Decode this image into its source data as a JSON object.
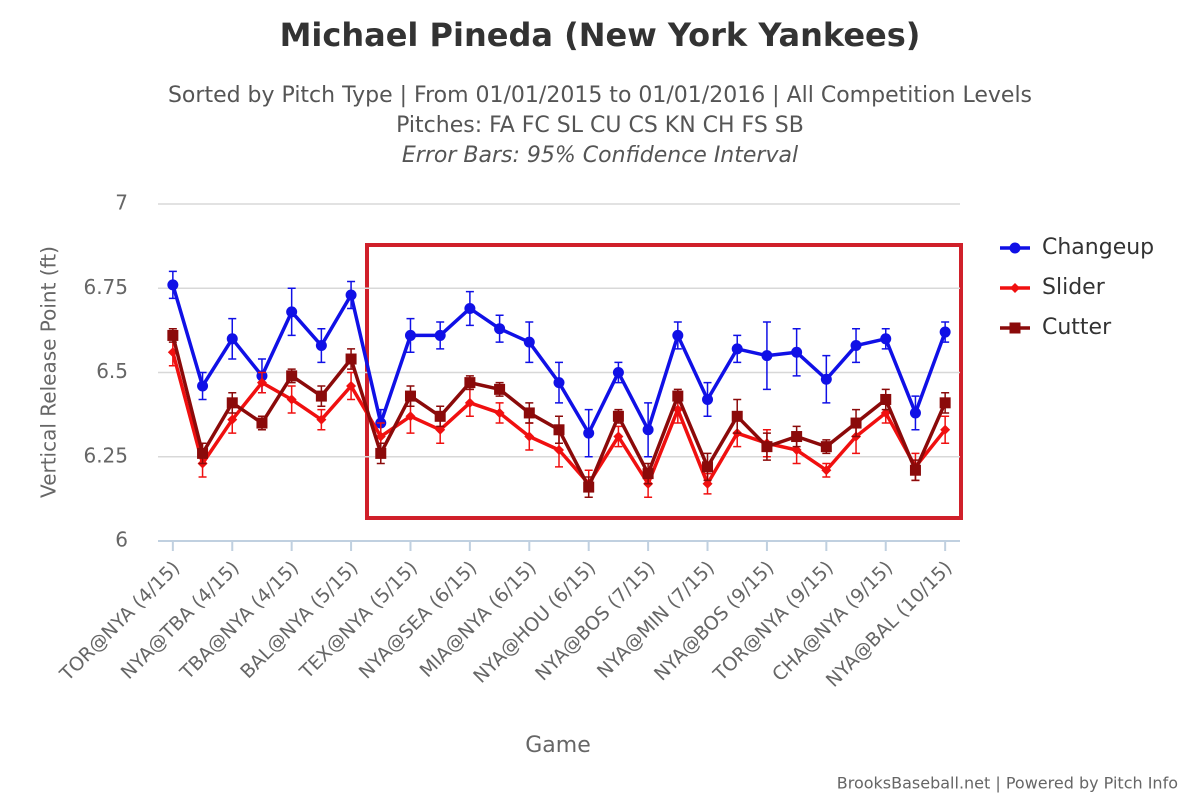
{
  "chart_data": {
    "type": "line",
    "title": "Michael Pineda (New York Yankees)",
    "subtitle": [
      "Sorted by Pitch Type | From 01/01/2015 to 01/01/2016 | All Competition Levels",
      "Pitches: FA FC SL CU CS KN CH FS SB",
      "Error Bars: 95% Confidence Interval"
    ],
    "x_label": "Game",
    "y_label": "Vertical Release Point (ft)",
    "credit": "BrooksBaseball.net | Powered by Pitch Info",
    "categories": [
      "TOR@NYA (4/15)",
      null,
      "NYA@TBA (4/15)",
      null,
      "TBA@NYA (4/15)",
      null,
      "BAL@NYA (5/15)",
      null,
      "TEX@NYA (5/15)",
      null,
      "NYA@SEA (6/15)",
      null,
      "MIA@NYA (6/15)",
      null,
      "NYA@HOU (6/15)",
      null,
      "NYA@BOS (7/15)",
      null,
      "NYA@MIN (7/15)",
      null,
      "NYA@BOS (9/15)",
      null,
      "TOR@NYA (9/15)",
      null,
      "CHA@NYA (9/15)",
      null,
      "NYA@BAL (10/15)"
    ],
    "ylim": [
      6,
      7
    ],
    "yticks": [
      6,
      6.25,
      6.5,
      6.75,
      7
    ],
    "grid": true,
    "legend": "right",
    "series": [
      {
        "name": "Changeup",
        "color": "#1010e6",
        "marker": "circle",
        "values": [
          6.76,
          6.46,
          6.6,
          6.49,
          6.68,
          6.58,
          6.73,
          6.35,
          6.61,
          6.61,
          6.69,
          6.63,
          6.59,
          6.47,
          6.32,
          6.5,
          6.33,
          6.61,
          6.42,
          6.57,
          6.55,
          6.56,
          6.48,
          6.58,
          6.6,
          6.38,
          6.62
        ],
        "errors": [
          0.04,
          0.04,
          0.06,
          0.05,
          0.07,
          0.05,
          0.04,
          0.04,
          0.05,
          0.04,
          0.05,
          0.04,
          0.06,
          0.06,
          0.07,
          0.03,
          0.08,
          0.04,
          0.05,
          0.04,
          0.1,
          0.07,
          0.07,
          0.05,
          0.03,
          0.05,
          0.03
        ]
      },
      {
        "name": "Slider",
        "color": "#f01010",
        "marker": "diamond",
        "values": [
          6.56,
          6.23,
          6.36,
          6.47,
          6.42,
          6.36,
          6.46,
          6.31,
          6.37,
          6.33,
          6.41,
          6.38,
          6.31,
          6.27,
          6.17,
          6.31,
          6.17,
          6.39,
          6.17,
          6.32,
          6.29,
          6.27,
          6.21,
          6.31,
          6.38,
          6.22,
          6.33
        ],
        "errors": [
          0.04,
          0.04,
          0.04,
          0.03,
          0.04,
          0.03,
          0.04,
          0.04,
          0.05,
          0.04,
          0.04,
          0.03,
          0.04,
          0.05,
          0.04,
          0.03,
          0.04,
          0.04,
          0.03,
          0.04,
          0.04,
          0.04,
          0.02,
          0.05,
          0.03,
          0.04,
          0.04
        ]
      },
      {
        "name": "Cutter",
        "color": "#8b0a0a",
        "marker": "square",
        "values": [
          6.61,
          6.26,
          6.41,
          6.35,
          6.49,
          6.43,
          6.54,
          6.26,
          6.43,
          6.37,
          6.47,
          6.45,
          6.38,
          6.33,
          6.16,
          6.37,
          6.2,
          6.43,
          6.22,
          6.37,
          6.28,
          6.31,
          6.28,
          6.35,
          6.42,
          6.21,
          6.41
        ],
        "errors": [
          0.02,
          0.03,
          0.03,
          0.02,
          0.02,
          0.03,
          0.03,
          0.03,
          0.03,
          0.03,
          0.02,
          0.02,
          0.03,
          0.04,
          0.03,
          0.02,
          0.03,
          0.02,
          0.04,
          0.05,
          0.04,
          0.03,
          0.02,
          0.04,
          0.03,
          0.03,
          0.03
        ]
      }
    ]
  }
}
